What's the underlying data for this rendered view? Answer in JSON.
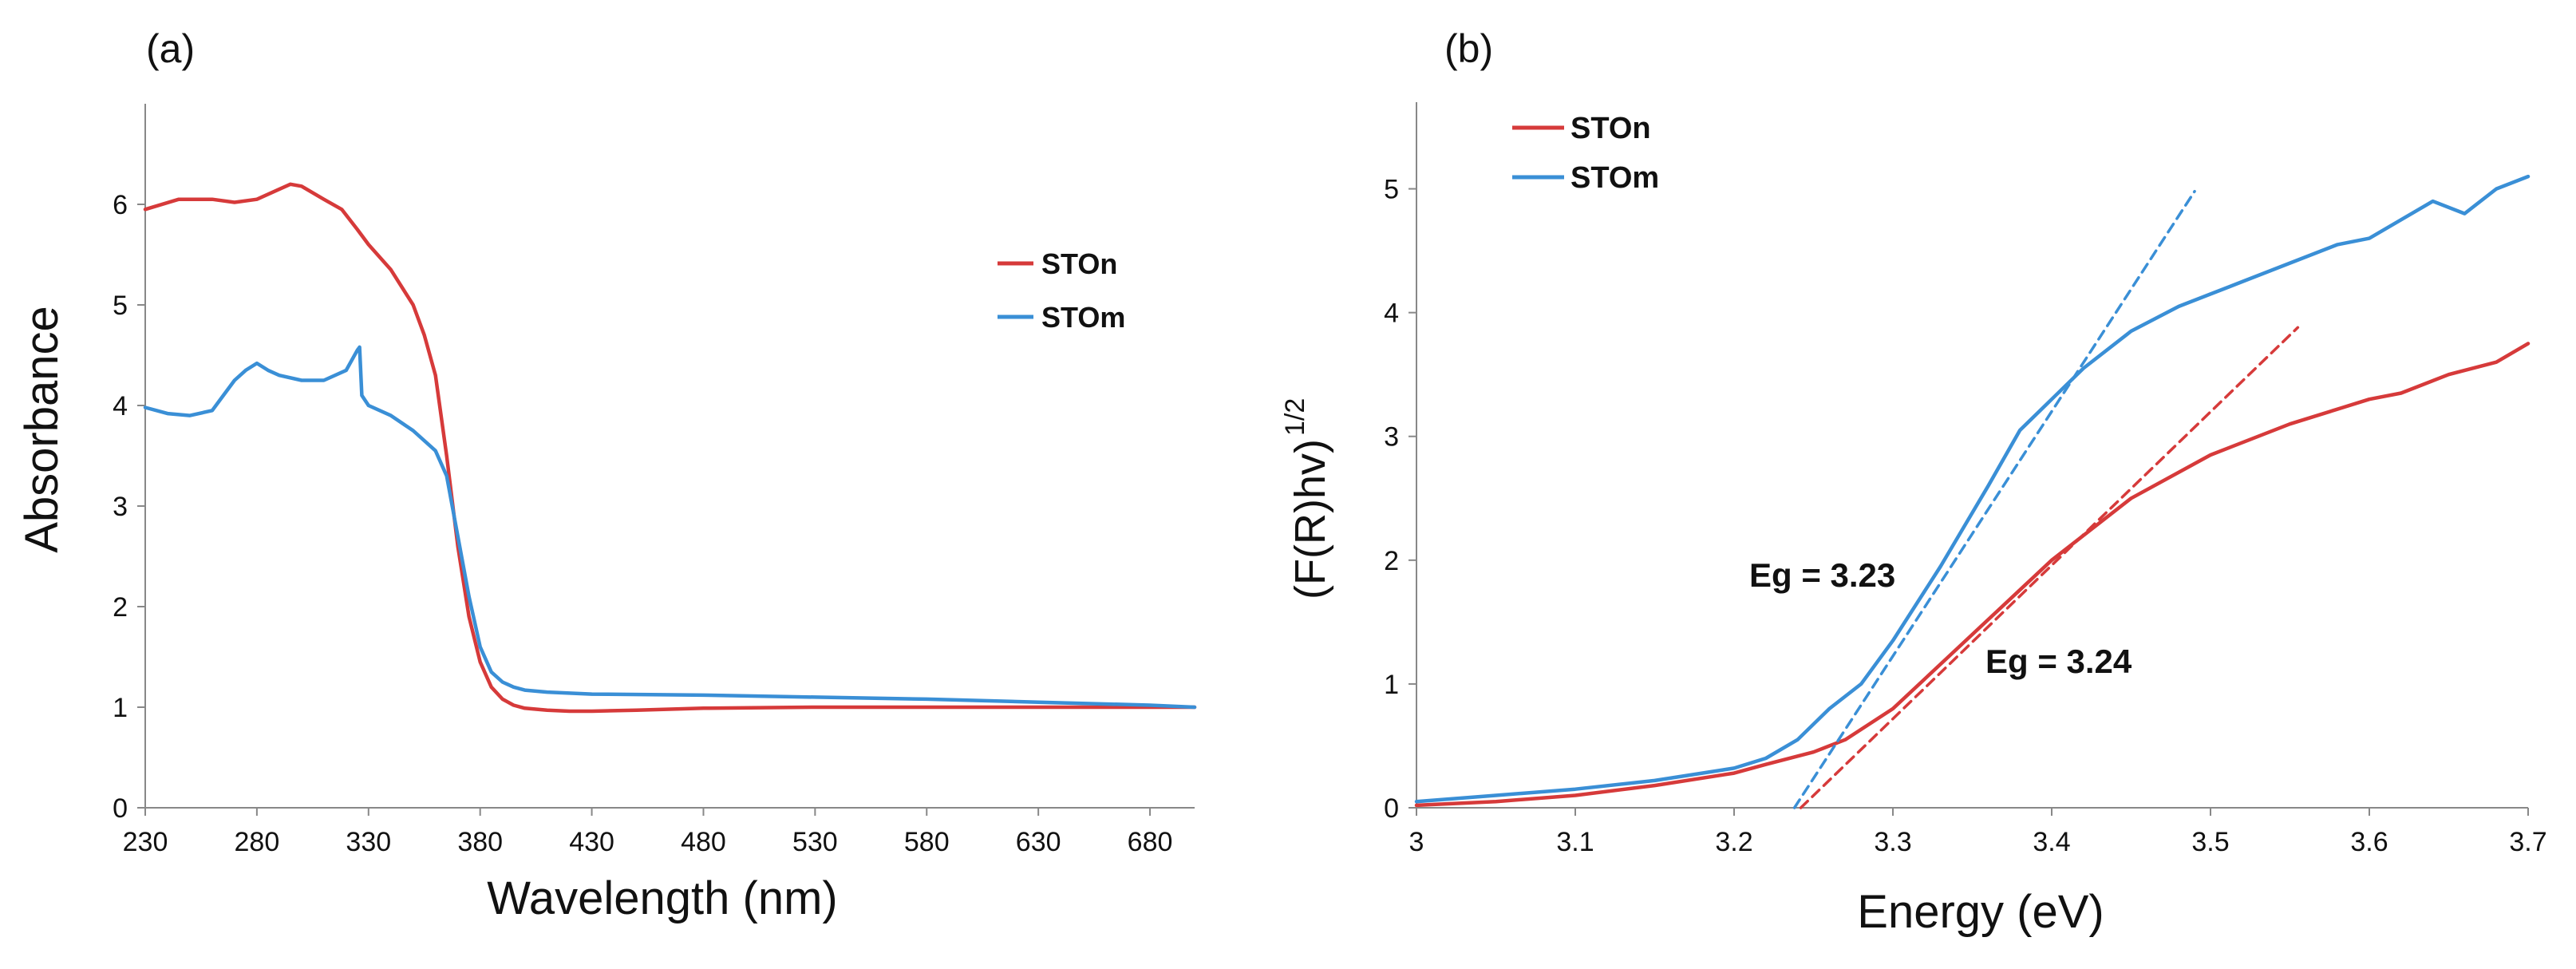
{
  "colors": {
    "stoN": "#d63a3a",
    "stoM": "#3a8fd6",
    "axis": "#888888",
    "text": "#111111"
  },
  "chart_data": [
    {
      "panel_label": "(a)",
      "type": "line",
      "xlabel": "Wavelength (nm)",
      "ylabel": "Absorbance",
      "xlim": [
        230,
        700
      ],
      "ylim": [
        0,
        7
      ],
      "xticks": [
        "230",
        "280",
        "330",
        "380",
        "430",
        "480",
        "530",
        "580",
        "630",
        "680"
      ],
      "yticks": [
        "0",
        "1",
        "2",
        "3",
        "4",
        "5",
        "6"
      ],
      "legend": {
        "position": "right",
        "entries": [
          "STOn",
          "STOm"
        ]
      },
      "series": [
        {
          "name": "STOn",
          "color": "#d63a3a",
          "x": [
            230,
            245,
            260,
            270,
            280,
            290,
            295,
            300,
            310,
            318,
            325,
            330,
            340,
            350,
            355,
            360,
            365,
            370,
            375,
            380,
            385,
            390,
            395,
            400,
            410,
            420,
            430,
            450,
            480,
            530,
            580,
            630,
            680,
            700
          ],
          "y": [
            5.95,
            6.05,
            6.05,
            6.02,
            6.05,
            6.15,
            6.2,
            6.18,
            6.05,
            5.95,
            5.75,
            5.6,
            5.35,
            5.0,
            4.7,
            4.3,
            3.5,
            2.6,
            1.9,
            1.45,
            1.2,
            1.08,
            1.02,
            0.99,
            0.97,
            0.96,
            0.96,
            0.97,
            0.99,
            1.0,
            1.0,
            1.0,
            1.0,
            1.0
          ]
        },
        {
          "name": "STOm",
          "color": "#3a8fd6",
          "x": [
            230,
            240,
            250,
            260,
            265,
            270,
            275,
            280,
            285,
            290,
            300,
            310,
            320,
            325,
            326,
            327,
            330,
            340,
            350,
            360,
            365,
            370,
            375,
            380,
            385,
            390,
            395,
            400,
            410,
            420,
            430,
            480,
            530,
            580,
            630,
            680,
            700
          ],
          "y": [
            3.98,
            3.92,
            3.9,
            3.95,
            4.1,
            4.25,
            4.35,
            4.42,
            4.35,
            4.3,
            4.25,
            4.25,
            4.35,
            4.55,
            4.58,
            4.1,
            4.0,
            3.9,
            3.75,
            3.55,
            3.3,
            2.7,
            2.1,
            1.6,
            1.35,
            1.25,
            1.2,
            1.17,
            1.15,
            1.14,
            1.13,
            1.12,
            1.1,
            1.08,
            1.05,
            1.02,
            1.0
          ]
        }
      ]
    },
    {
      "panel_label": "(b)",
      "type": "line",
      "xlabel": "Energy (eV)",
      "ylabel": "(F(R)hv)",
      "ylabel_sup": "1/2",
      "xlim": [
        3.0,
        3.7
      ],
      "ylim": [
        0,
        5.7
      ],
      "xticks": [
        "3",
        "3.1",
        "3.2",
        "3.3",
        "3.4",
        "3.5",
        "3.6",
        "3.7"
      ],
      "yticks": [
        "0",
        "1",
        "2",
        "3",
        "4",
        "5"
      ],
      "legend": {
        "position": "top-left",
        "entries": [
          "STOn",
          "STOm"
        ]
      },
      "annotations": [
        "Eg = 3.23",
        "Eg = 3.24"
      ],
      "series": [
        {
          "name": "STOn",
          "color": "#d63a3a",
          "x": [
            3.0,
            3.05,
            3.1,
            3.15,
            3.2,
            3.22,
            3.25,
            3.27,
            3.3,
            3.35,
            3.4,
            3.45,
            3.5,
            3.55,
            3.6,
            3.62,
            3.65,
            3.68,
            3.7
          ],
          "y": [
            0.02,
            0.05,
            0.1,
            0.18,
            0.28,
            0.35,
            0.45,
            0.55,
            0.8,
            1.4,
            2.0,
            2.5,
            2.85,
            3.1,
            3.3,
            3.35,
            3.5,
            3.6,
            3.75
          ]
        },
        {
          "name": "STOm",
          "color": "#3a8fd6",
          "x": [
            3.0,
            3.05,
            3.1,
            3.15,
            3.2,
            3.22,
            3.24,
            3.26,
            3.28,
            3.3,
            3.33,
            3.36,
            3.38,
            3.4,
            3.42,
            3.45,
            3.48,
            3.5,
            3.52,
            3.55,
            3.58,
            3.6,
            3.62,
            3.64,
            3.66,
            3.68,
            3.7
          ],
          "y": [
            0.05,
            0.1,
            0.15,
            0.22,
            0.32,
            0.4,
            0.55,
            0.8,
            1.0,
            1.35,
            1.95,
            2.6,
            3.05,
            3.3,
            3.55,
            3.85,
            4.05,
            4.15,
            4.25,
            4.4,
            4.55,
            4.6,
            4.75,
            4.9,
            4.8,
            5.0,
            5.1
          ]
        },
        {
          "name": "STOm tangent",
          "color": "#3a8fd6",
          "style": "dashed",
          "x": [
            3.238,
            3.49
          ],
          "y": [
            0.0,
            4.98
          ]
        },
        {
          "name": "STOn tangent",
          "color": "#d63a3a",
          "style": "dashed",
          "x": [
            3.242,
            3.555
          ],
          "y": [
            0.0,
            3.88
          ]
        }
      ]
    }
  ]
}
